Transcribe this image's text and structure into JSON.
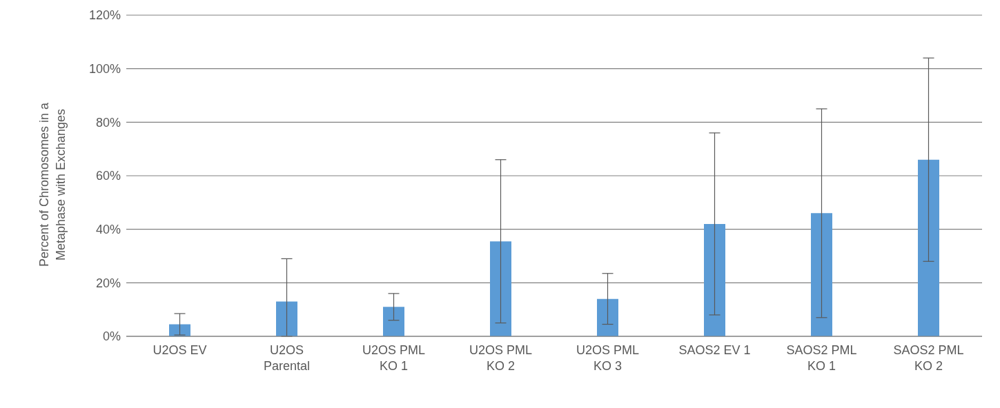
{
  "chart_data": {
    "type": "bar",
    "ylabel": "Percent of Chromosomes in a Metaphase with Exchanges",
    "categories": [
      "U2OS EV",
      "U2OS Parental",
      "U2OS PML KO 1",
      "U2OS PML KO 2",
      "U2OS PML KO 3",
      "SAOS2 EV 1",
      "SAOS2 PML KO 1",
      "SAOS2 PML KO 2"
    ],
    "values": [
      4.5,
      13,
      11,
      35.5,
      14,
      42,
      46,
      66
    ],
    "errors": [
      4,
      [
        0,
        29
      ],
      5,
      30.5,
      9.5,
      34,
      39,
      38
    ],
    "color": "#5b9bd5",
    "ylim": [
      0,
      120
    ],
    "yticks": [
      {
        "value": 0,
        "label": "0%"
      },
      {
        "value": 20,
        "label": "20%"
      },
      {
        "value": 40,
        "label": "40%"
      },
      {
        "value": 60,
        "label": "60%"
      },
      {
        "value": 80,
        "label": "80%"
      },
      {
        "value": 100,
        "label": "100%"
      },
      {
        "value": 120,
        "label": "120%"
      }
    ],
    "grid": "y"
  }
}
